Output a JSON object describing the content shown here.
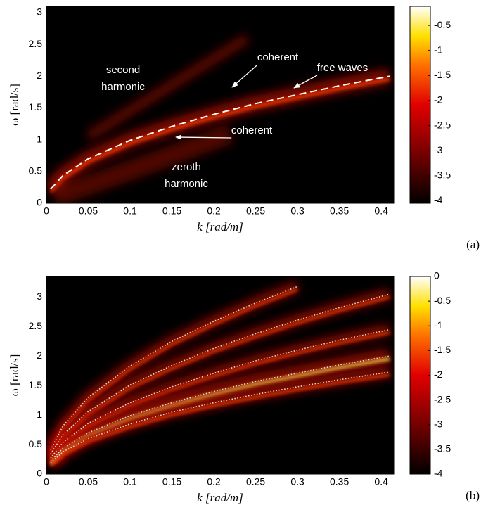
{
  "chart_data": [
    {
      "type": "heatmap",
      "xlabel": "k [rad/m]",
      "ylabel": "ω [rad/s]",
      "xlim": [
        0,
        0.415
      ],
      "ylim": [
        0,
        3.1
      ],
      "xticks": [
        0,
        0.05,
        0.1,
        0.15,
        0.2,
        0.25,
        0.3,
        0.35,
        0.4
      ],
      "yticks": [
        0,
        0.5,
        1,
        1.5,
        2,
        2.5,
        3
      ],
      "colormap": "hot",
      "clim": [
        -4.05,
        -0.12
      ],
      "colorbar_ticks": [
        -4,
        -3.5,
        -3,
        -2.5,
        -2,
        -1.5,
        -1,
        -0.5
      ],
      "panel_label": "(a)",
      "x": [
        0.005,
        0.02,
        0.05,
        0.1,
        0.15,
        0.2,
        0.25,
        0.3,
        0.35,
        0.41
      ],
      "series": [
        {
          "color": "#ffffff",
          "dash": "dashed",
          "values": [
            0.22,
            0.44,
            0.7,
            0.99,
            1.21,
            1.4,
            1.57,
            1.71,
            1.85,
            2.0
          ]
        }
      ],
      "annotations": [
        {
          "lines": [
            "second",
            "harmonic"
          ]
        },
        {
          "lines": [
            "coherent"
          ]
        },
        {
          "lines": [
            "free waves"
          ]
        },
        {
          "lines": [
            "coherent"
          ]
        },
        {
          "lines": [
            "zeroth",
            "harmonic"
          ]
        }
      ]
    },
    {
      "type": "heatmap",
      "xlabel": "k [rad/m]",
      "ylabel": "ω [rad/s]",
      "xlim": [
        0,
        0.415
      ],
      "ylim": [
        0,
        3.35
      ],
      "xticks": [
        0,
        0.05,
        0.1,
        0.15,
        0.2,
        0.25,
        0.3,
        0.35,
        0.4
      ],
      "yticks": [
        0,
        0.5,
        1,
        1.5,
        2,
        2.5,
        3
      ],
      "colormap": "hot",
      "clim": [
        -4,
        0
      ],
      "colorbar_ticks": [
        -4,
        -3.5,
        -3,
        -2.5,
        -2,
        -1.5,
        -1,
        -0.5,
        0
      ],
      "panel_label": "(b)",
      "x": [
        0.005,
        0.02,
        0.05,
        0.1,
        0.15,
        0.2,
        0.25,
        0.3,
        0.35,
        0.41
      ],
      "series": [
        {
          "color": "#dddddd",
          "dash": "dotted",
          "values": [
            0.41,
            0.82,
            1.3,
            1.83,
            2.25,
            2.59,
            2.9,
            3.18,
            null,
            null
          ]
        },
        {
          "color": "#dddddd",
          "dash": "dotted",
          "values": [
            0.34,
            0.67,
            1.06,
            1.51,
            1.84,
            2.13,
            2.38,
            2.61,
            2.82,
            3.05
          ]
        },
        {
          "color": "#dddddd",
          "dash": "dotted",
          "values": [
            0.27,
            0.54,
            0.86,
            1.21,
            1.48,
            1.71,
            1.92,
            2.1,
            2.27,
            2.45
          ]
        },
        {
          "color": "#dddddd",
          "dash": "dotted",
          "values": [
            0.22,
            0.44,
            0.7,
            0.99,
            1.21,
            1.4,
            1.57,
            1.71,
            1.85,
            2.0
          ]
        },
        {
          "color": "#dddddd",
          "dash": "dotted",
          "values": [
            0.19,
            0.38,
            0.6,
            0.85,
            1.05,
            1.21,
            1.35,
            1.48,
            1.6,
            1.73
          ]
        }
      ]
    }
  ]
}
